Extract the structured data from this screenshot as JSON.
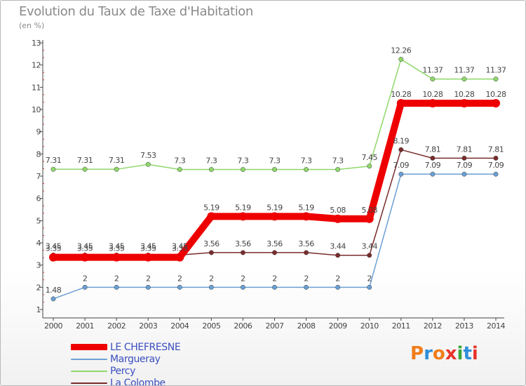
{
  "title": "Evolution du Taux de Taxe d'Habitation",
  "unit": "(en %)",
  "logo_text": "Proxiti",
  "logo_colors": [
    "#f07d1a",
    "#2f8fd8",
    "#f07d1a",
    "#e8342a",
    "#3aa63a",
    "#2f8fd8",
    "#e8342a"
  ],
  "chart_data": {
    "type": "line",
    "x": [
      2000,
      2001,
      2002,
      2003,
      2004,
      2005,
      2006,
      2007,
      2008,
      2009,
      2010,
      2011,
      2012,
      2013,
      2014
    ],
    "ylim": [
      1,
      13
    ],
    "yticks": [
      1,
      2,
      3,
      4,
      5,
      6,
      7,
      8,
      9,
      10,
      11,
      12,
      13
    ],
    "grid": false,
    "legend_position": "bottom-left",
    "series": [
      {
        "name": "LE CHEFRESNE",
        "color": "#ee0000",
        "values": [
          3.35,
          3.35,
          3.35,
          3.35,
          3.35,
          5.19,
          5.19,
          5.19,
          5.19,
          5.08,
          5.08,
          10.28,
          10.28,
          10.28,
          10.28
        ],
        "labels": [
          "3.35",
          "3.35",
          "3.35",
          "3.35",
          "3.35",
          "5.19",
          "5.19",
          "5.19",
          "5.19",
          "5.08",
          "5.08",
          "10.28",
          "10.28",
          "10.28",
          "10.28"
        ]
      },
      {
        "name": "Margueray",
        "color": "#6aa0d4",
        "values": [
          1.48,
          2,
          2,
          2,
          2,
          2,
          2,
          2,
          2,
          2,
          2,
          7.09,
          7.09,
          7.09,
          7.09
        ],
        "labels": [
          "1.48",
          "2",
          "2",
          "2",
          "2",
          "2",
          "2",
          "2",
          "2",
          "2",
          "2",
          "7.09",
          "7.09",
          "7.09",
          "7.09"
        ]
      },
      {
        "name": "Percy",
        "color": "#8fd86a",
        "values": [
          7.31,
          7.31,
          7.31,
          7.53,
          7.3,
          7.3,
          7.3,
          7.3,
          7.3,
          7.3,
          7.45,
          12.26,
          11.37,
          11.37,
          11.37
        ],
        "labels": [
          "7.31",
          "7.31",
          "7.31",
          "7.53",
          "7.3",
          "7.3",
          "7.3",
          "7.3",
          "7.3",
          "7.3",
          "7.45",
          "12.26",
          "11.37",
          "11.37",
          "11.37"
        ]
      },
      {
        "name": "La Colombe",
        "color": "#7a2c2c",
        "values": [
          3.45,
          3.45,
          3.45,
          3.45,
          3.45,
          3.56,
          3.56,
          3.56,
          3.56,
          3.44,
          3.44,
          8.19,
          7.81,
          7.81,
          7.81
        ],
        "labels": [
          "3.45",
          "3.45",
          "3.45",
          "3.45",
          "3.45",
          "3.56",
          "3.56",
          "3.56",
          "3.56",
          "3.44",
          "3.44",
          "8.19",
          "7.81",
          "7.81",
          "7.81"
        ]
      }
    ]
  }
}
